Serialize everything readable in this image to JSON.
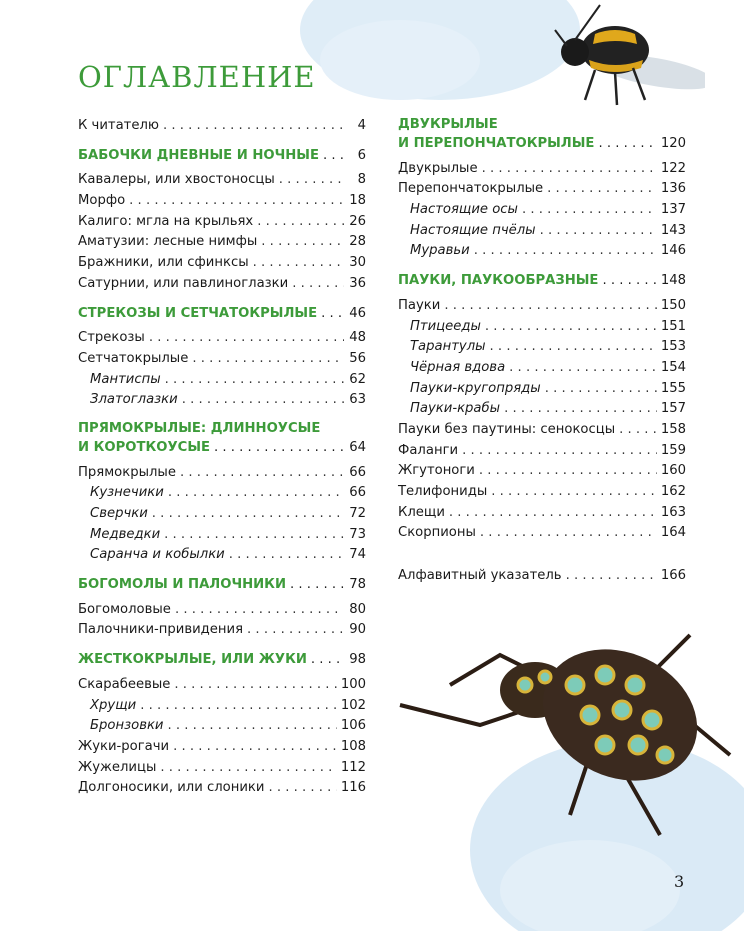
{
  "title": "ОГЛАВЛЕНИЕ",
  "page_number": "3",
  "colors": {
    "accent": "#3d9b3a",
    "wash": "#cfe3f3"
  },
  "left_column": [
    {
      "type": "item",
      "label": "К читателю",
      "page": "4"
    },
    {
      "type": "section",
      "label": "БАБОЧКИ ДНЕВНЫЕ И НОЧНЫЕ",
      "page": "6"
    },
    {
      "type": "item",
      "label": "Кавалеры, или хвостоносцы",
      "page": "8"
    },
    {
      "type": "item",
      "label": "Морфо",
      "page": "18"
    },
    {
      "type": "item",
      "label": "Калиго: мгла на крыльях",
      "page": "26"
    },
    {
      "type": "item",
      "label": "Аматузии: лесные нимфы",
      "page": "28"
    },
    {
      "type": "item",
      "label": "Бражники, или сфинксы",
      "page": "30"
    },
    {
      "type": "item",
      "label": "Сатурнии, или павлиноглазки",
      "page": "36"
    },
    {
      "type": "section",
      "label": "СТРЕКОЗЫ И СЕТЧАТОКРЫЛЫЕ",
      "page": "46"
    },
    {
      "type": "item",
      "label": "Стрекозы",
      "page": "48"
    },
    {
      "type": "item",
      "label": "Сетчатокрылые",
      "page": "56"
    },
    {
      "type": "sub",
      "label": "Мантиспы",
      "page": "62"
    },
    {
      "type": "sub",
      "label": "Златоглазки",
      "page": "63"
    },
    {
      "type": "section2",
      "line1": "ПРЯМОКРЫЛЫЕ: ДЛИННОУСЫЕ",
      "label": "И КОРОТКОУСЫЕ",
      "page": "64"
    },
    {
      "type": "item",
      "label": "Прямокрылые",
      "page": "66"
    },
    {
      "type": "sub",
      "label": "Кузнечики",
      "page": "66"
    },
    {
      "type": "sub",
      "label": "Сверчки",
      "page": "72"
    },
    {
      "type": "sub",
      "label": "Медведки",
      "page": "73"
    },
    {
      "type": "sub",
      "label": "Саранча и кобылки",
      "page": "74"
    },
    {
      "type": "section",
      "label": "БОГОМОЛЫ И ПАЛОЧНИКИ",
      "page": "78"
    },
    {
      "type": "item",
      "label": "Богомоловые",
      "page": "80"
    },
    {
      "type": "item",
      "label": "Палочники-привидения",
      "page": "90"
    },
    {
      "type": "section",
      "label": "ЖЕСТКОКРЫЛЫЕ, ИЛИ ЖУКИ",
      "page": "98"
    },
    {
      "type": "item",
      "label": "Скарабеевые",
      "page": "100"
    },
    {
      "type": "sub",
      "label": "Хрущи",
      "page": "102"
    },
    {
      "type": "sub",
      "label": "Бронзовки",
      "page": "106"
    },
    {
      "type": "item",
      "label": "Жуки-рогачи",
      "page": "108"
    },
    {
      "type": "item",
      "label": "Жужелицы",
      "page": "112"
    },
    {
      "type": "item",
      "label": "Долгоносики, или слоники",
      "page": "116"
    }
  ],
  "right_column": [
    {
      "type": "section2first",
      "line1": "ДВУКРЫЛЫЕ",
      "label": "И ПЕРЕПОНЧАТОКРЫЛЫЕ",
      "page": "120"
    },
    {
      "type": "item",
      "label": "Двукрылые",
      "page": "122"
    },
    {
      "type": "item",
      "label": "Перепончатокрылые",
      "page": "136"
    },
    {
      "type": "sub",
      "label": "Настоящие осы",
      "page": "137"
    },
    {
      "type": "sub",
      "label": "Настоящие пчёлы",
      "page": "143"
    },
    {
      "type": "sub",
      "label": "Муравьи",
      "page": "146"
    },
    {
      "type": "section",
      "label": "ПАУКИ, ПАУКООБРАЗНЫЕ",
      "page": "148"
    },
    {
      "type": "item",
      "label": "Пауки",
      "page": "150"
    },
    {
      "type": "sub",
      "label": "Птицееды",
      "page": "151"
    },
    {
      "type": "sub",
      "label": "Тарантулы",
      "page": "153"
    },
    {
      "type": "sub",
      "label": "Чёрная вдова",
      "page": "154"
    },
    {
      "type": "sub",
      "label": "Пауки-кругопряды",
      "page": "155"
    },
    {
      "type": "sub",
      "label": "Пауки-крабы",
      "page": "157"
    },
    {
      "type": "item",
      "label": "Пауки без паутины: сенокосцы",
      "page": "158"
    },
    {
      "type": "item",
      "label": "Фаланги",
      "page": "159"
    },
    {
      "type": "item",
      "label": "Жгутоноги",
      "page": "160"
    },
    {
      "type": "item",
      "label": "Телифониды",
      "page": "162"
    },
    {
      "type": "item",
      "label": "Клещи",
      "page": "163"
    },
    {
      "type": "item",
      "label": "Скорпионы",
      "page": "164"
    },
    {
      "type": "gap",
      "label": "Алфавитный указатель",
      "page": "166"
    }
  ]
}
